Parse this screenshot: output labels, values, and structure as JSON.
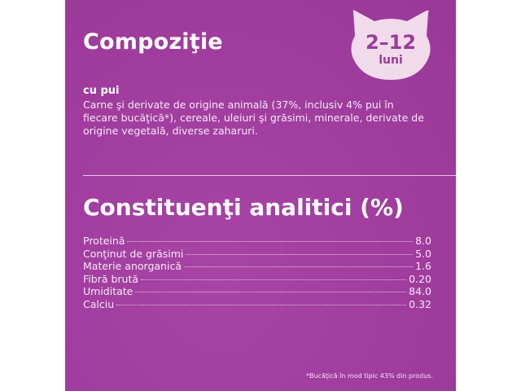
{
  "composition": {
    "title": "Compoziţie",
    "badge": {
      "age_range": "2–12",
      "unit": "luni",
      "icon": "cat-head-icon",
      "color": "#f1dbeb"
    },
    "variant": "cu pui",
    "description": "Carne şi derivate de origine animală (37%, inclusiv 4% pui în fiecare bucăţică*), cereale, uleiuri şi grăsimi, minerale, derivate de origine vegetală, diverse zaharuri."
  },
  "analytics": {
    "title": "Constituenţi analitici (%)",
    "rows": [
      {
        "label": "Proteină",
        "value": "8.0"
      },
      {
        "label": "Conţinut de grăsimi",
        "value": "5.0"
      },
      {
        "label": "Materie anorganică",
        "value": "1.6"
      },
      {
        "label": "Fibră brută",
        "value": "0.20"
      },
      {
        "label": "Umiditate",
        "value": "84.0"
      },
      {
        "label": "Calciu",
        "value": "0.32"
      }
    ]
  },
  "footnote": "*Bucăţică în mod tipic 43% din produs.",
  "colors": {
    "panel": "#a03d9e",
    "text": "#ffffff"
  }
}
